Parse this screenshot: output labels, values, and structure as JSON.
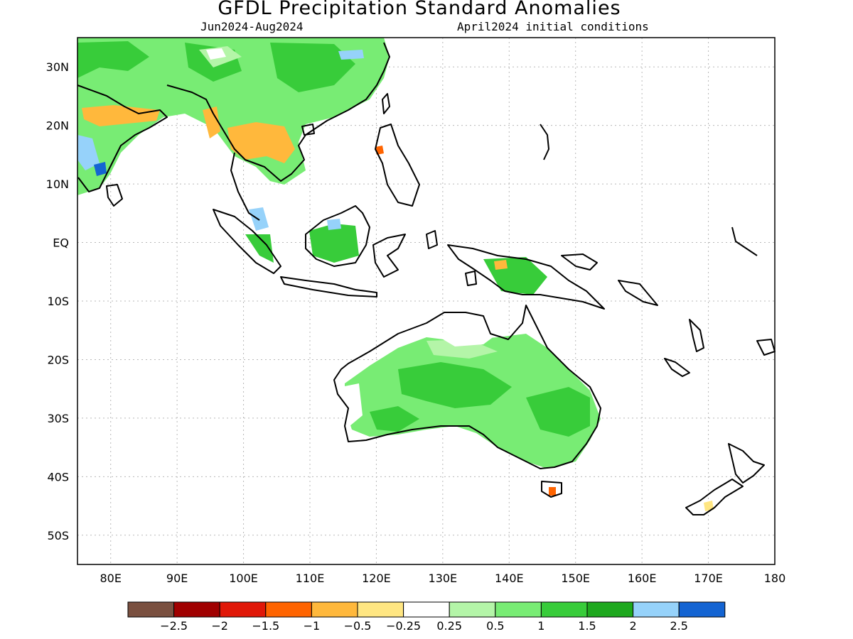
{
  "header": {
    "title": "GFDL Precipitation Standard Anomalies",
    "period": "Jun2024-Aug2024",
    "init": "April2024 initial conditions"
  },
  "map": {
    "lon_range": [
      75,
      180
    ],
    "lat_range": [
      -55,
      35
    ],
    "lat_ticks": [
      "30N",
      "20N",
      "10N",
      "EQ",
      "10S",
      "20S",
      "30S",
      "40S",
      "50S"
    ],
    "lon_ticks": [
      "80E",
      "90E",
      "100E",
      "110E",
      "120E",
      "130E",
      "140E",
      "150E",
      "160E",
      "170E",
      "180"
    ]
  },
  "colorbar": {
    "colors": [
      "#7a5040",
      "#a00000",
      "#e01808",
      "#ff6400",
      "#ffb83c",
      "#ffe682",
      "#ffffff",
      "#b4f5a8",
      "#78ec74",
      "#38cc3a",
      "#1ea81e",
      "#96d2fa",
      "#1464d2"
    ],
    "labels": [
      "-2.5",
      "-2",
      "-1.5",
      "-1",
      "-0.5",
      "-0.25",
      "0.25",
      "0.5",
      "1",
      "1.5",
      "2",
      "2.5"
    ]
  }
}
